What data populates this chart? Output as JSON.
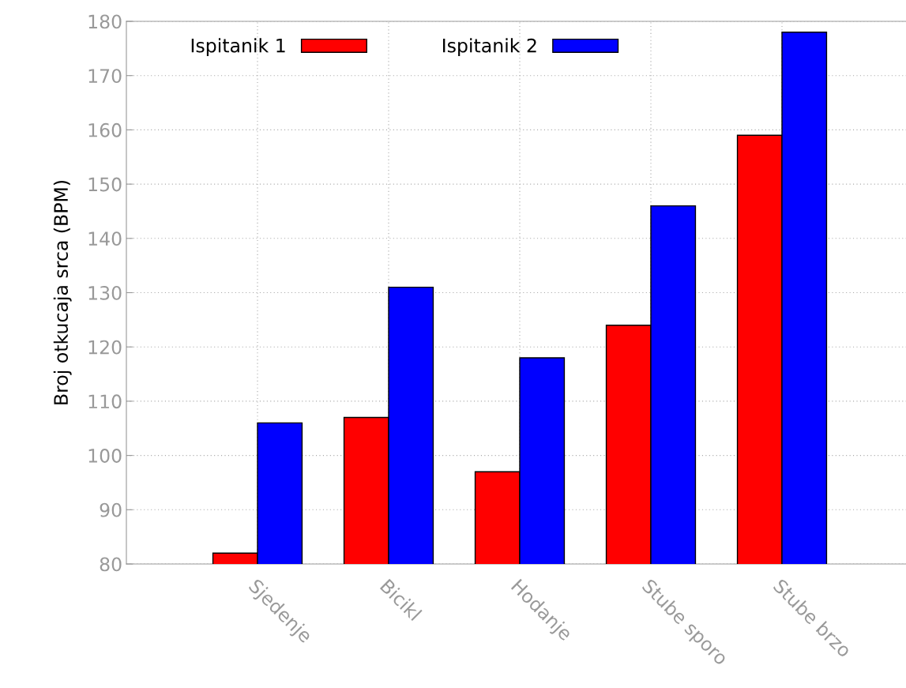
{
  "chart_data": {
    "type": "bar",
    "ylabel": "Broj otkucaja srca (BPM)",
    "categories": [
      "Sjedenje",
      "Bicikl",
      "Hodanje",
      "Stube sporo",
      "Stube brzo"
    ],
    "series": [
      {
        "name": "Ispitanik 1",
        "color": "#ff0000",
        "values": [
          82,
          107,
          97,
          124,
          159
        ]
      },
      {
        "name": "Ispitanik 2",
        "color": "#0000ff",
        "values": [
          106,
          131,
          118,
          146,
          178
        ]
      }
    ],
    "ylim": [
      80,
      180
    ],
    "yticks": [
      80,
      90,
      100,
      110,
      120,
      130,
      140,
      150,
      160,
      170,
      180
    ],
    "grid": true,
    "legend": "top left"
  }
}
